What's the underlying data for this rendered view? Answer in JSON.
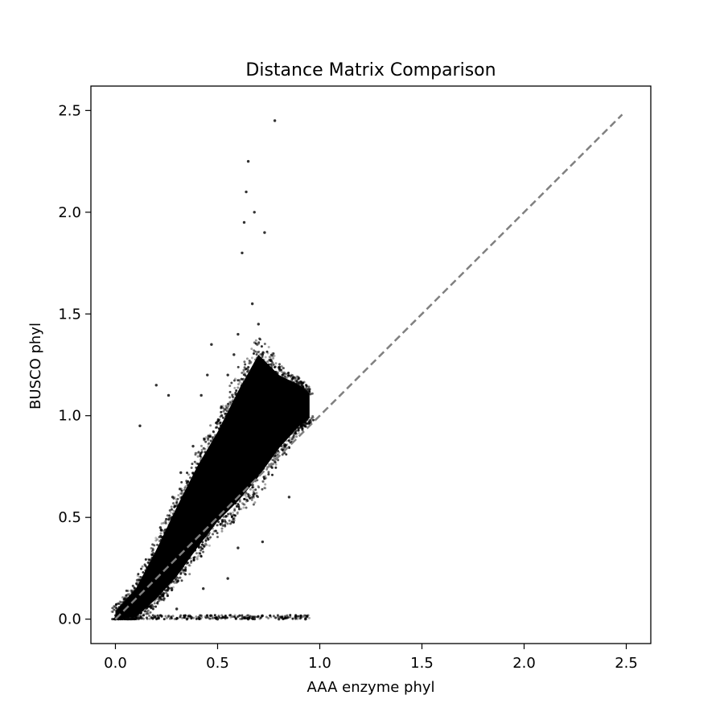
{
  "chart_data": {
    "type": "scatter",
    "title": "Distance Matrix Comparison",
    "xlabel": "AAA enzyme phyl",
    "ylabel": "BUSCO phyl",
    "xlim": [
      -0.12,
      2.62
    ],
    "ylim": [
      -0.12,
      2.62
    ],
    "x_ticks": [
      0.0,
      0.5,
      1.0,
      1.5,
      2.0,
      2.5
    ],
    "x_tick_labels": [
      "0.0",
      "0.5",
      "1.0",
      "1.5",
      "2.0",
      "2.5"
    ],
    "y_ticks": [
      0.0,
      0.5,
      1.0,
      1.5,
      2.0,
      2.5
    ],
    "y_tick_labels": [
      "0.0",
      "0.5",
      "1.0",
      "1.5",
      "2.0",
      "2.5"
    ],
    "grid": false,
    "legend": "none",
    "colors": {
      "points": "#000000",
      "reference_line": "#808080"
    },
    "reference_line": {
      "style": "dashed",
      "x": [
        0.0,
        2.48
      ],
      "y": [
        0.0,
        2.48
      ]
    },
    "cloud": {
      "description_points_dense": true,
      "centerline": [
        [
          0.0,
          0.0
        ],
        [
          0.1,
          0.08
        ],
        [
          0.2,
          0.22
        ],
        [
          0.3,
          0.38
        ],
        [
          0.4,
          0.55
        ],
        [
          0.5,
          0.7
        ],
        [
          0.6,
          0.85
        ],
        [
          0.7,
          1.0
        ],
        [
          0.8,
          1.02
        ],
        [
          0.9,
          1.05
        ],
        [
          0.95,
          1.05
        ]
      ],
      "spread": [
        [
          0.0,
          0.04
        ],
        [
          0.1,
          0.07
        ],
        [
          0.2,
          0.12
        ],
        [
          0.3,
          0.17
        ],
        [
          0.4,
          0.2
        ],
        [
          0.5,
          0.22
        ],
        [
          0.6,
          0.27
        ],
        [
          0.7,
          0.3
        ],
        [
          0.8,
          0.18
        ],
        [
          0.9,
          0.1
        ],
        [
          0.95,
          0.06
        ]
      ]
    },
    "points": [
      [
        0.0,
        0.0
      ],
      [
        0.02,
        0.01
      ],
      [
        0.05,
        0.03
      ],
      [
        0.08,
        0.06
      ],
      [
        0.12,
        0.95
      ],
      [
        0.14,
        0.2
      ],
      [
        0.18,
        0.3
      ],
      [
        0.22,
        0.45
      ],
      [
        0.25,
        0.32
      ],
      [
        0.28,
        0.6
      ],
      [
        0.3,
        0.05
      ],
      [
        0.32,
        0.72
      ],
      [
        0.35,
        0.42
      ],
      [
        0.38,
        0.85
      ],
      [
        0.4,
        0.6
      ],
      [
        0.42,
        1.1
      ],
      [
        0.45,
        1.2
      ],
      [
        0.47,
        1.35
      ],
      [
        0.5,
        0.85
      ],
      [
        0.52,
        1.0
      ],
      [
        0.55,
        1.2
      ],
      [
        0.58,
        1.3
      ],
      [
        0.6,
        1.4
      ],
      [
        0.62,
        1.8
      ],
      [
        0.63,
        1.95
      ],
      [
        0.64,
        2.1
      ],
      [
        0.65,
        2.25
      ],
      [
        0.67,
        1.55
      ],
      [
        0.7,
        1.45
      ],
      [
        0.72,
        1.3
      ],
      [
        0.75,
        1.25
      ],
      [
        0.78,
        2.45
      ],
      [
        0.82,
        1.15
      ],
      [
        0.86,
        1.1
      ],
      [
        0.9,
        1.05
      ],
      [
        0.94,
        1.0
      ],
      [
        0.35,
        0.0
      ],
      [
        0.5,
        0.0
      ],
      [
        0.65,
        0.0
      ],
      [
        0.8,
        0.0
      ],
      [
        0.93,
        0.0
      ],
      [
        0.72,
        0.38
      ],
      [
        0.85,
        0.6
      ],
      [
        0.26,
        1.1
      ],
      [
        0.2,
        1.15
      ],
      [
        0.68,
        2.0
      ],
      [
        0.73,
        1.9
      ],
      [
        0.55,
        0.2
      ],
      [
        0.6,
        0.35
      ],
      [
        0.43,
        0.15
      ]
    ]
  }
}
